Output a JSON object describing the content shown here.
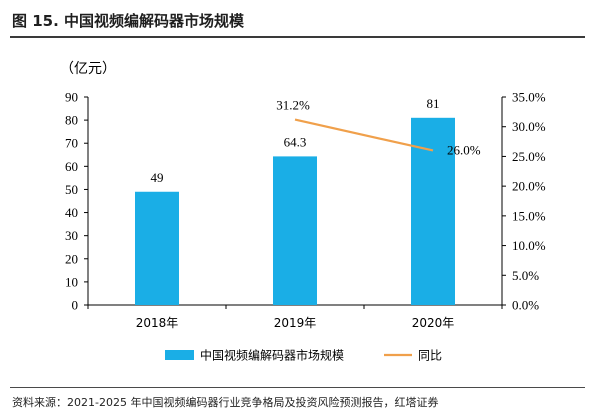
{
  "figure_title": "图 15.  中国视频编解码器市场规模",
  "source": "资料来源：2021-2025 年中国视频编码器行业竞争格局及投资风险预测报告，红塔证券",
  "chart_data": {
    "type": "bar",
    "categories": [
      "2018年",
      "2019年",
      "2020年"
    ],
    "series": [
      {
        "name": "中国视频编解码器市场规模",
        "kind": "bar",
        "axis": "left",
        "values": [
          49,
          64.3,
          81
        ],
        "labels": [
          "49",
          "64.3",
          "81"
        ],
        "color": "#1aaee6"
      },
      {
        "name": "同比",
        "kind": "line",
        "axis": "right",
        "values": [
          null,
          31.2,
          26.0
        ],
        "labels": [
          "",
          "31.2%",
          "26.0%"
        ],
        "color": "#f0a04b"
      }
    ],
    "ylabel": "（亿元）",
    "ylim": [
      0,
      90
    ],
    "yticks": [
      "0",
      "10",
      "20",
      "30",
      "40",
      "50",
      "60",
      "70",
      "80",
      "90"
    ],
    "y2lim": [
      0,
      35
    ],
    "y2ticks": [
      "0.0%",
      "5.0%",
      "10.0%",
      "15.0%",
      "20.0%",
      "25.0%",
      "30.0%",
      "35.0%"
    ],
    "legend_position": "bottom",
    "grid": false
  }
}
